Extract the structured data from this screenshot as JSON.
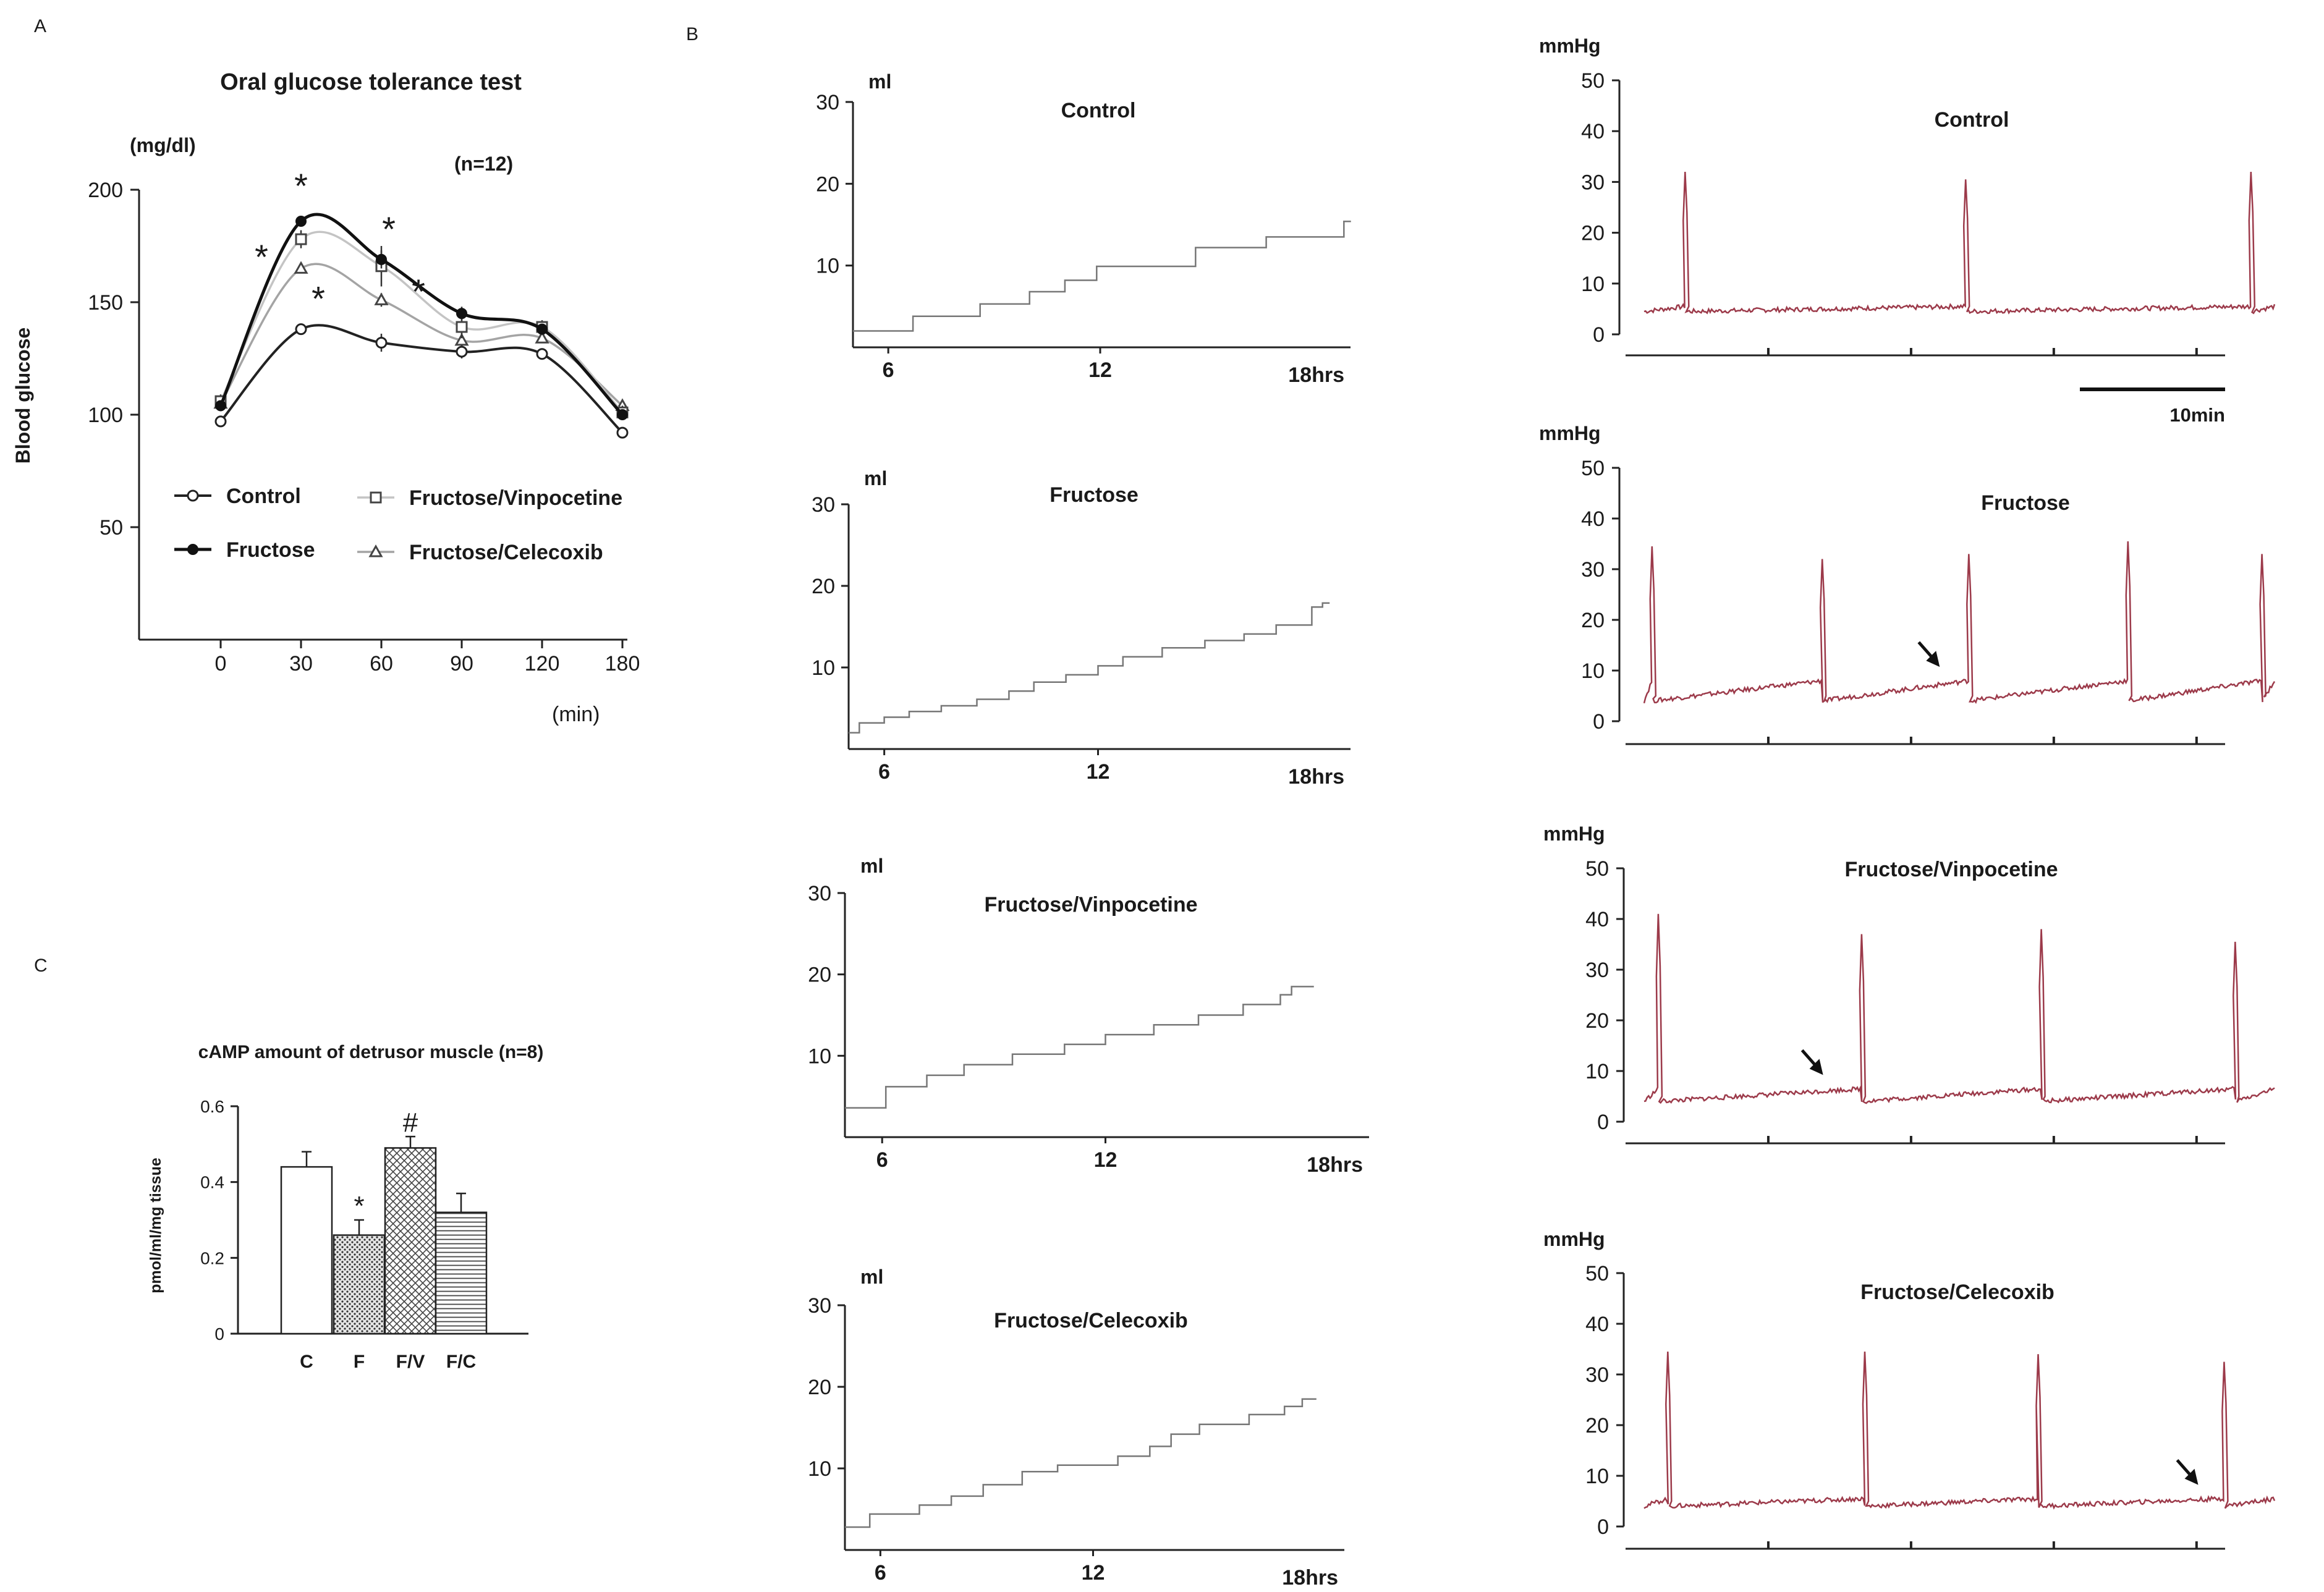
{
  "panel_labels": {
    "a": "A",
    "b": "B",
    "c": "C"
  },
  "chart_data": [
    {
      "id": "ogtt",
      "type": "line",
      "title": "Oral glucose tolerance test",
      "ylabel": "Blood glucose",
      "yunit": "(mg/dl)",
      "xunit": "(min)",
      "n_label": "(n=12)",
      "categories": [
        "0",
        "30",
        "60",
        "90",
        "120",
        "180"
      ],
      "yticks": [
        "50",
        "100",
        "150",
        "200"
      ],
      "ylim": [
        0,
        200
      ],
      "star": "*",
      "series": [
        {
          "name": "Control",
          "marker": "open-circle",
          "values": [
            97,
            138,
            132,
            128,
            127,
            92
          ],
          "errors": [
            2,
            2,
            4,
            3,
            2,
            2
          ],
          "stars": [
            0,
            1,
            0,
            0,
            0,
            0
          ]
        },
        {
          "name": "Fructose",
          "marker": "filled-circle",
          "values": [
            104,
            186,
            169,
            145,
            138,
            100
          ],
          "errors": [
            2,
            2,
            4,
            3,
            2,
            2
          ],
          "stars": [
            0,
            1,
            1,
            0,
            0,
            0
          ]
        },
        {
          "name": "Fructose/Vinpocetine",
          "marker": "open-square",
          "values": [
            106,
            178,
            166,
            139,
            139,
            101
          ],
          "errors": [
            3,
            4,
            9,
            5,
            3,
            3
          ],
          "stars": [
            0,
            1,
            1,
            0,
            0,
            0
          ]
        },
        {
          "name": "Fructose/Celecoxib",
          "marker": "open-triangle",
          "values": [
            105,
            165,
            151,
            133,
            134,
            104
          ],
          "errors": [
            2,
            2,
            3,
            3,
            2,
            2
          ],
          "stars": [
            0,
            0,
            0,
            0,
            0,
            0
          ]
        }
      ]
    },
    {
      "id": "camp",
      "type": "bar",
      "title": "cAMP amount of detrusor muscle (n=8)",
      "ylabel": "pmol/ml/mg tissue",
      "categories": [
        "C",
        "F",
        "F/V",
        "F/C"
      ],
      "values": [
        0.44,
        0.26,
        0.49,
        0.32
      ],
      "errors": [
        0.04,
        0.04,
        0.03,
        0.05
      ],
      "annotations": [
        "",
        "*",
        "#",
        ""
      ],
      "yticks": [
        "0",
        "0.2",
        "0.4",
        "0.6"
      ],
      "ylim": [
        0,
        0.6
      ]
    },
    {
      "id": "volume",
      "type": "line",
      "unit": "ml",
      "yticks": [
        "10",
        "20",
        "30"
      ],
      "xticks": [
        "6",
        "12",
        "18hrs"
      ],
      "ylim": [
        0,
        30
      ],
      "xlim": [
        5,
        19
      ],
      "panels": [
        {
          "title": "Control",
          "points": [
            [
              5,
              2
            ],
            [
              6.7,
              2
            ],
            [
              6.7,
              3.8
            ],
            [
              8.6,
              3.8
            ],
            [
              8.6,
              5.3
            ],
            [
              10,
              5.3
            ],
            [
              10,
              6.8
            ],
            [
              11,
              6.8
            ],
            [
              11,
              8.2
            ],
            [
              11.9,
              8.2
            ],
            [
              11.9,
              9.9
            ],
            [
              14.7,
              9.9
            ],
            [
              14.7,
              12.2
            ],
            [
              16.7,
              12.2
            ],
            [
              16.7,
              13.5
            ],
            [
              18.9,
              13.5
            ],
            [
              18.9,
              15.4
            ],
            [
              19.1,
              15.4
            ]
          ]
        },
        {
          "title": "Fructose",
          "points": [
            [
              5,
              2
            ],
            [
              5.3,
              2
            ],
            [
              5.3,
              3.2
            ],
            [
              6,
              3.2
            ],
            [
              6,
              3.9
            ],
            [
              6.7,
              3.9
            ],
            [
              6.7,
              4.6
            ],
            [
              7.6,
              4.6
            ],
            [
              7.6,
              5.3
            ],
            [
              8.6,
              5.3
            ],
            [
              8.6,
              6.1
            ],
            [
              9.5,
              6.1
            ],
            [
              9.5,
              7.1
            ],
            [
              10.2,
              7.1
            ],
            [
              10.2,
              8.2
            ],
            [
              11.1,
              8.2
            ],
            [
              11.1,
              9.1
            ],
            [
              12,
              9.1
            ],
            [
              12,
              10.2
            ],
            [
              12.7,
              10.2
            ],
            [
              12.7,
              11.3
            ],
            [
              13.8,
              11.3
            ],
            [
              13.8,
              12.4
            ],
            [
              15,
              12.4
            ],
            [
              15,
              13.3
            ],
            [
              16.1,
              13.3
            ],
            [
              16.1,
              14.1
            ],
            [
              17,
              14.1
            ],
            [
              17,
              15.2
            ],
            [
              18,
              15.2
            ],
            [
              18,
              17.4
            ],
            [
              18.3,
              17.4
            ],
            [
              18.3,
              17.9
            ],
            [
              18.5,
              17.9
            ]
          ]
        },
        {
          "title": "Fructose/Vinpocetine",
          "points": [
            [
              5,
              3.6
            ],
            [
              6.1,
              3.6
            ],
            [
              6.1,
              6.2
            ],
            [
              7.2,
              6.2
            ],
            [
              7.2,
              7.6
            ],
            [
              8.2,
              7.6
            ],
            [
              8.2,
              8.9
            ],
            [
              9.5,
              8.9
            ],
            [
              9.5,
              10.2
            ],
            [
              10.9,
              10.2
            ],
            [
              10.9,
              11.4
            ],
            [
              12,
              11.4
            ],
            [
              12,
              12.6
            ],
            [
              13.3,
              12.6
            ],
            [
              13.3,
              13.8
            ],
            [
              14.5,
              13.8
            ],
            [
              14.5,
              15
            ],
            [
              15.7,
              15
            ],
            [
              15.7,
              16.3
            ],
            [
              16.7,
              16.3
            ],
            [
              16.7,
              17.5
            ],
            [
              17,
              17.5
            ],
            [
              17,
              18.5
            ],
            [
              17.6,
              18.5
            ]
          ]
        },
        {
          "title": "Fructose/Celecoxib",
          "points": [
            [
              5,
              2.8
            ],
            [
              5.7,
              2.8
            ],
            [
              5.7,
              4.4
            ],
            [
              7.1,
              4.4
            ],
            [
              7.1,
              5.5
            ],
            [
              8,
              5.5
            ],
            [
              8,
              6.6
            ],
            [
              8.9,
              6.6
            ],
            [
              8.9,
              8
            ],
            [
              10,
              8
            ],
            [
              10,
              9.6
            ],
            [
              11,
              9.6
            ],
            [
              11,
              10.4
            ],
            [
              12.7,
              10.4
            ],
            [
              12.7,
              11.5
            ],
            [
              13.6,
              11.5
            ],
            [
              13.6,
              12.7
            ],
            [
              14.2,
              12.7
            ],
            [
              14.2,
              14.2
            ],
            [
              15,
              14.2
            ],
            [
              15,
              15.4
            ],
            [
              16.4,
              15.4
            ],
            [
              16.4,
              16.6
            ],
            [
              17.4,
              16.6
            ],
            [
              17.4,
              17.6
            ],
            [
              17.9,
              17.6
            ],
            [
              17.9,
              18.5
            ],
            [
              18.3,
              18.5
            ]
          ]
        }
      ]
    },
    {
      "id": "pressure",
      "type": "line",
      "unit": "mmHg",
      "yticks": [
        "0",
        "10",
        "20",
        "30",
        "40",
        "50"
      ],
      "ylim": [
        0,
        50
      ],
      "xlim": [
        0,
        40
      ],
      "scale_bar": "10min",
      "panels": [
        {
          "title": "Control",
          "baseline": [
            4.5,
            5.5
          ],
          "peaks": [
            {
              "t": 2.6,
              "v": 32
            },
            {
              "t": 20.4,
              "v": 30.5
            },
            {
              "t": 38.5,
              "v": 32
            }
          ],
          "arrow_t": null
        },
        {
          "title": "Fructose",
          "baseline": [
            4,
            8
          ],
          "peaks": [
            {
              "t": 0.5,
              "v": 34.5
            },
            {
              "t": 11.3,
              "v": 32
            },
            {
              "t": 20.6,
              "v": 33
            },
            {
              "t": 30.7,
              "v": 35.5
            },
            {
              "t": 39.2,
              "v": 33
            }
          ],
          "arrow_t": 18.6
        },
        {
          "title": "Fructose/Vinpocetine",
          "baseline": [
            4,
            6.5
          ],
          "peaks": [
            {
              "t": 0.9,
              "v": 41
            },
            {
              "t": 13.8,
              "v": 37
            },
            {
              "t": 25.2,
              "v": 38
            },
            {
              "t": 37.5,
              "v": 35.5
            }
          ],
          "arrow_t": 11.2
        },
        {
          "title": "Fructose/Celecoxib",
          "baseline": [
            4,
            5.5
          ],
          "peaks": [
            {
              "t": 1.5,
              "v": 34.5
            },
            {
              "t": 14,
              "v": 34.5
            },
            {
              "t": 25,
              "v": 34
            },
            {
              "t": 36.8,
              "v": 32.5
            }
          ],
          "arrow_t": 35
        }
      ]
    }
  ]
}
